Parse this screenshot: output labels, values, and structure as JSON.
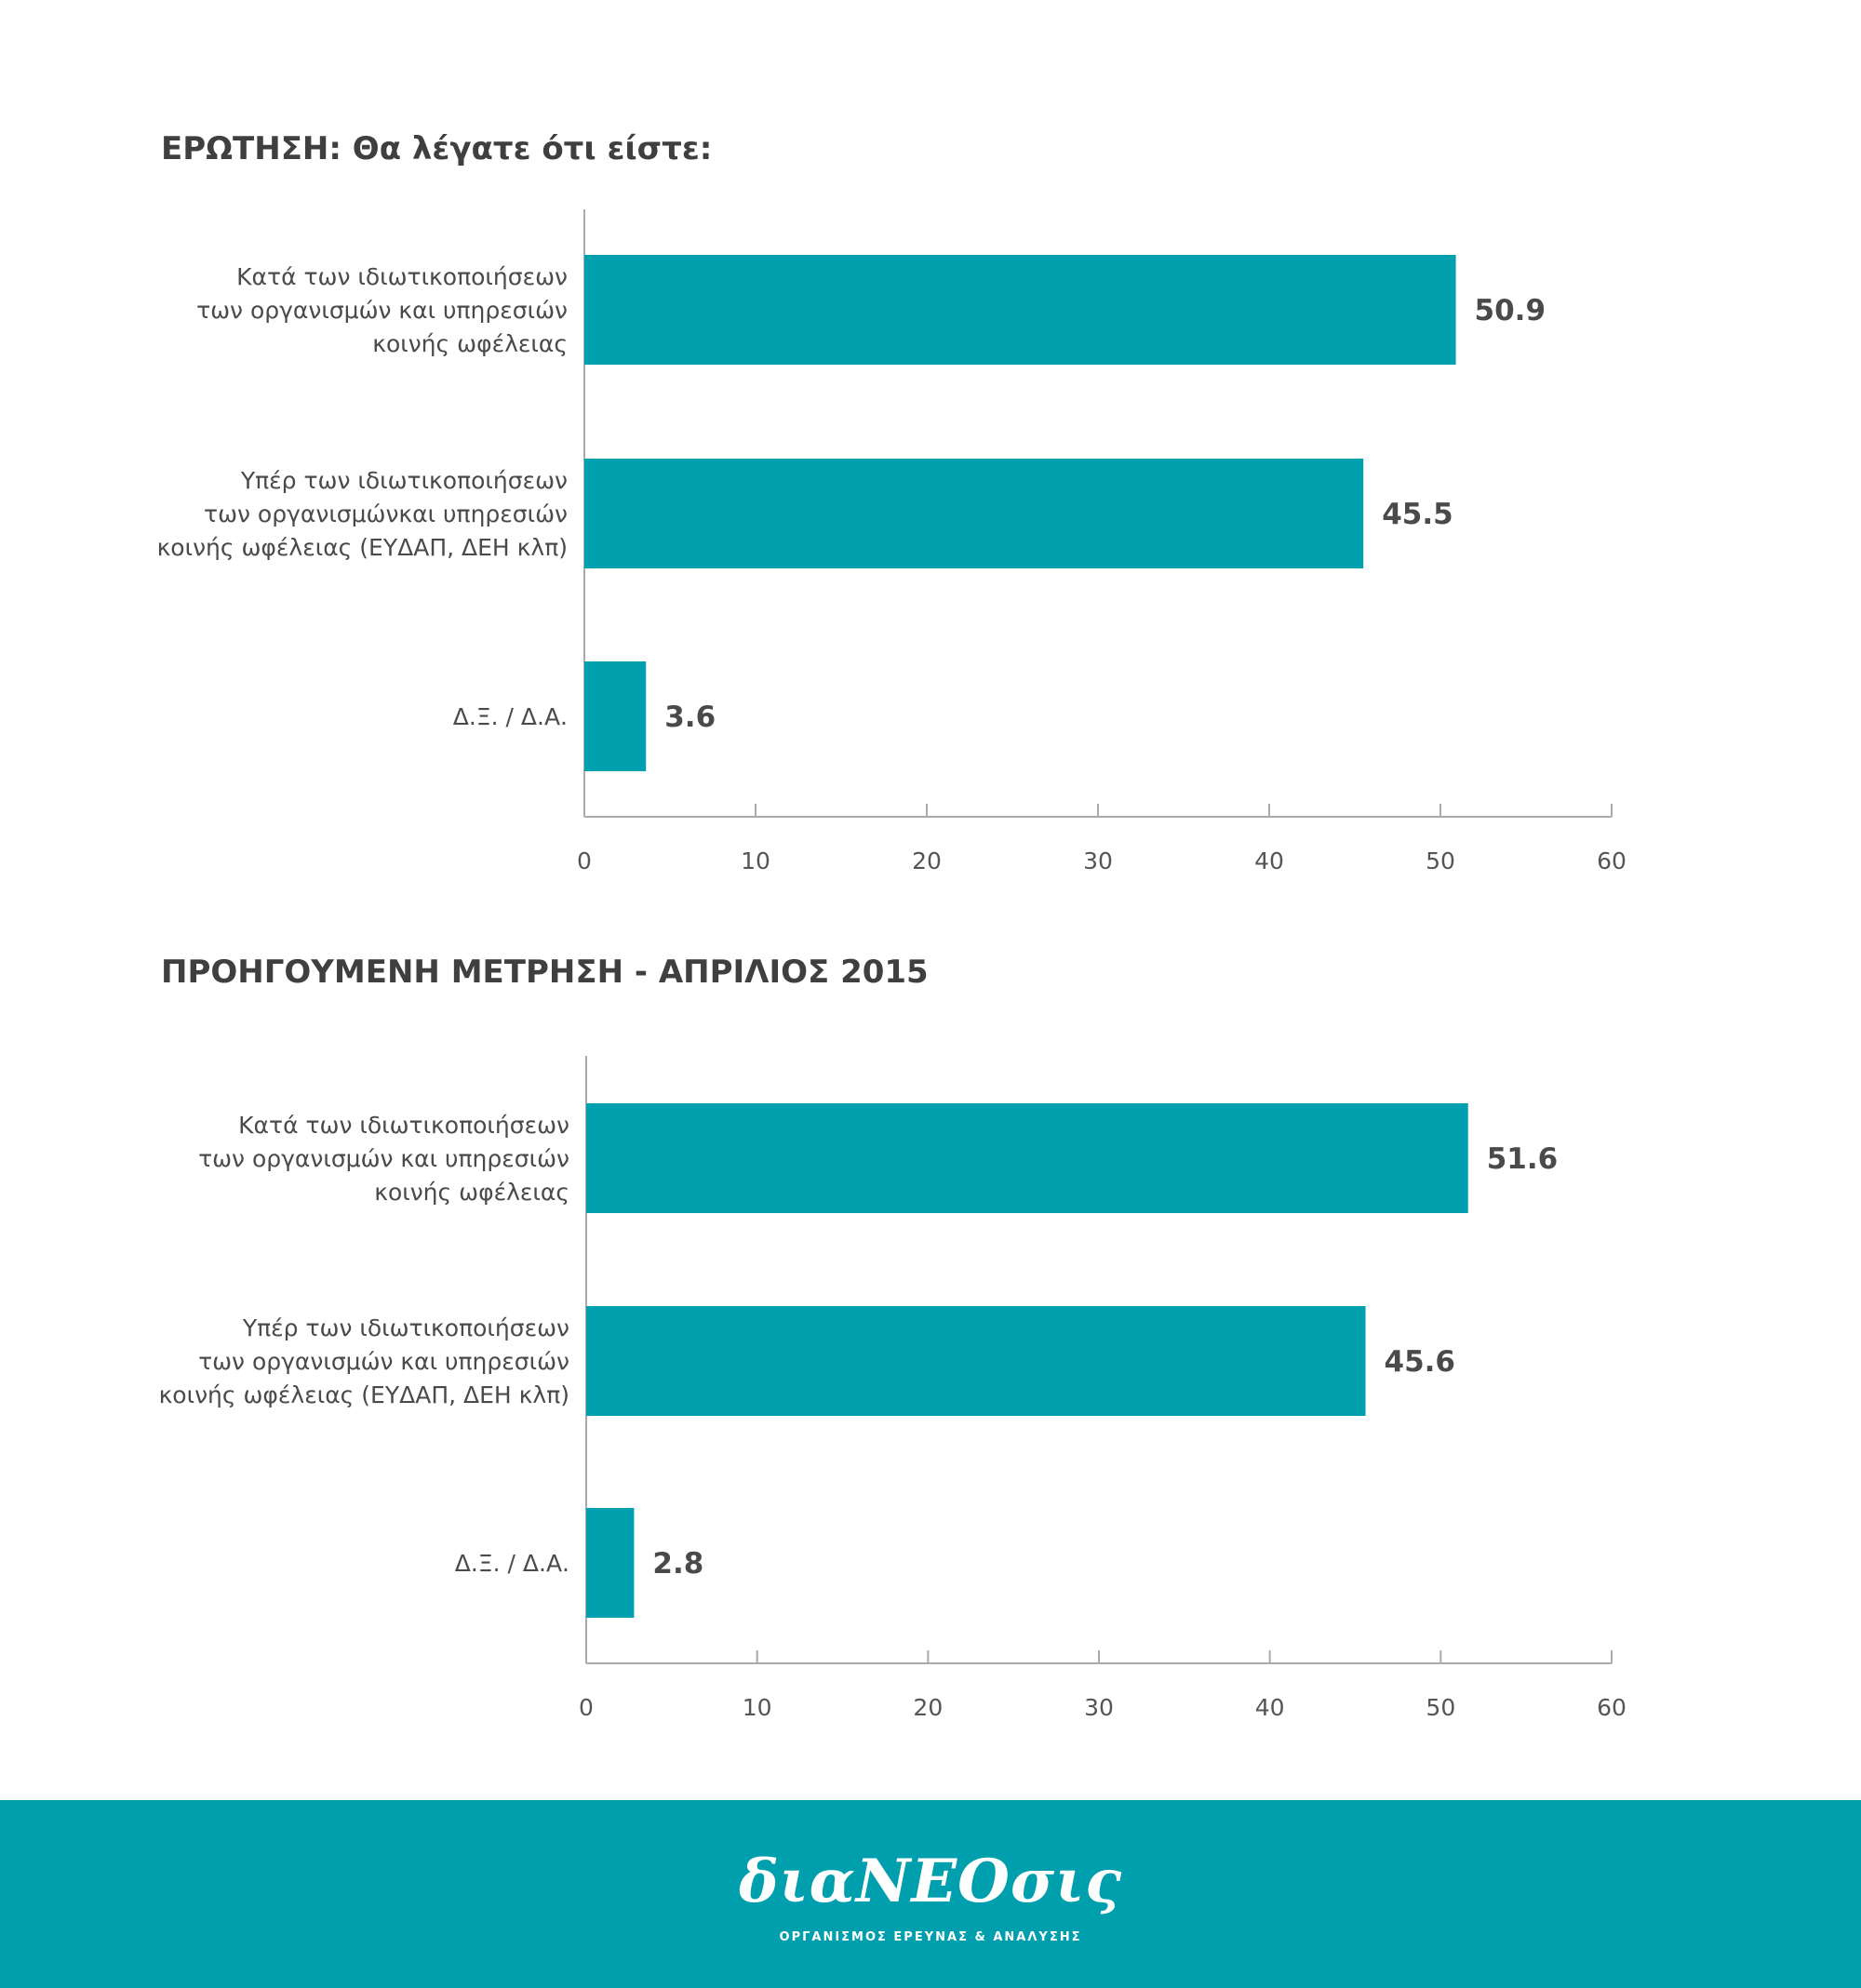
{
  "chart_data": [
    {
      "type": "bar",
      "orientation": "horizontal",
      "title": "ΕΡΩΤΗΣΗ: Θα λέγατε ότι είστε:",
      "categories": [
        [
          "Κατά των ιδιωτικοποιήσεων",
          "των οργανισμών και υπηρεσιών",
          "κοινής ωφέλειας"
        ],
        [
          "Υπέρ των ιδιωτικοποιήσεων",
          "των οργανισμώνκαι υπηρεσιών",
          "κοινής ωφέλειας (ΕΥΔΑΠ, ΔΕΗ κλπ)"
        ],
        [
          "Δ.Ξ. / Δ.Α."
        ]
      ],
      "values": [
        50.9,
        45.5,
        3.6
      ],
      "value_labels": [
        "50.9",
        "45.5",
        "3.6"
      ],
      "xlim": [
        0,
        60
      ],
      "xticks": [
        "0",
        "10",
        "20",
        "30",
        "40",
        "50",
        "60"
      ],
      "grid": false,
      "color": "#00a0ae"
    },
    {
      "type": "bar",
      "orientation": "horizontal",
      "title": "ΠΡΟΗΓΟΥΜΕΝΗ ΜΕΤΡΗΣΗ - ΑΠΡΙΛΙΟΣ 2015",
      "categories": [
        [
          "Κατά των ιδιωτικοποιήσεων",
          "των οργανισμών και υπηρεσιών",
          "κοινής ωφέλειας"
        ],
        [
          "Υπέρ των ιδιωτικοποιήσεων",
          "των οργανισμών και υπηρεσιών",
          "κοινής ωφέλειας (ΕΥΔΑΠ, ΔΕΗ κλπ)"
        ],
        [
          "Δ.Ξ. / Δ.Α."
        ]
      ],
      "values": [
        51.6,
        45.6,
        2.8
      ],
      "value_labels": [
        "51.6",
        "45.6",
        "2.8"
      ],
      "xlim": [
        0,
        60
      ],
      "xticks": [
        "0",
        "10",
        "20",
        "30",
        "40",
        "50",
        "60"
      ],
      "grid": false,
      "color": "#00a0ae"
    }
  ],
  "footer": {
    "logo_text": "διαΝΕΟσις",
    "subtitle": "ΟΡΓΑΝΙΣΜΟΣ ΕΡΕΥΝΑΣ & ΑΝΑΛΥΣΗΣ",
    "background": "#009fae"
  }
}
